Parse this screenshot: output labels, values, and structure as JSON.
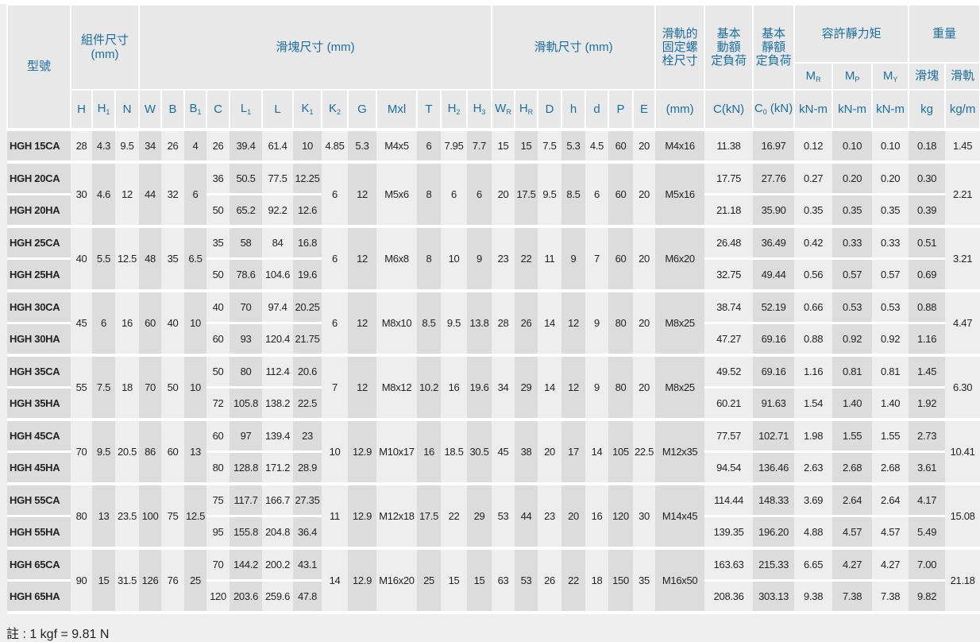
{
  "header": {
    "model": "型號",
    "assembly": "組件尺寸\n(mm)",
    "block": "滑塊尺寸 (mm)",
    "rail": "滑軌尺寸 (mm)",
    "bolt": "滑軌的\n固定螺\n栓尺寸",
    "dynamic": "基本\n動額\n定負荷",
    "static": "基本\n靜額\n定負荷",
    "moment": "容許靜力矩",
    "weight": "重量",
    "symbols": [
      {
        "b": "H",
        "s": ""
      },
      {
        "b": "H",
        "s": "1"
      },
      {
        "b": "N",
        "s": ""
      },
      {
        "b": "W",
        "s": ""
      },
      {
        "b": "B",
        "s": ""
      },
      {
        "b": "B",
        "s": "1"
      },
      {
        "b": "C",
        "s": ""
      },
      {
        "b": "L",
        "s": "1"
      },
      {
        "b": "L",
        "s": ""
      },
      {
        "b": "K",
        "s": "1"
      },
      {
        "b": "K",
        "s": "2"
      },
      {
        "b": "G",
        "s": ""
      },
      {
        "b": "Mxl",
        "s": ""
      },
      {
        "b": "T",
        "s": ""
      },
      {
        "b": "H",
        "s": "2"
      },
      {
        "b": "H",
        "s": "3"
      },
      {
        "b": "W",
        "s": "R"
      },
      {
        "b": "H",
        "s": "R"
      },
      {
        "b": "D",
        "s": ""
      },
      {
        "b": "h",
        "s": ""
      },
      {
        "b": "d",
        "s": ""
      },
      {
        "b": "P",
        "s": ""
      },
      {
        "b": "E",
        "s": ""
      },
      {
        "b": "(mm)",
        "s": ""
      },
      {
        "b": "C(kN)",
        "s": ""
      },
      {
        "b": "C",
        "s": "0",
        "t": " (kN)"
      }
    ],
    "moment_cols": [
      {
        "b": "M",
        "s": "R",
        "unit": "kN-m"
      },
      {
        "b": "M",
        "s": "P",
        "unit": "kN-m"
      },
      {
        "b": "M",
        "s": "Y",
        "unit": "kN-m"
      }
    ],
    "weight_cols": [
      {
        "b": "滑塊",
        "unit": "kg"
      },
      {
        "b": "滑軌",
        "unit": "kg/m"
      }
    ]
  },
  "groups": [
    {
      "shared": {
        "H": "28",
        "H1": "4.3",
        "N": "9.5",
        "W": "34",
        "B": "26",
        "B1": "4",
        "K2": "4.85",
        "G": "5.3",
        "Mxl": "M4x5",
        "T": "6",
        "H2": "7.95",
        "H3": "7.7",
        "WR": "15",
        "HR": "15",
        "D": "7.5",
        "h": "5.3",
        "d": "4.5",
        "P": "60",
        "E": "20",
        "bolt": "M4x16",
        "rail": "1.45"
      },
      "variants": [
        {
          "model": "HGH 15CA",
          "C": "26",
          "L1": "39.4",
          "L": "61.4",
          "K1": "10",
          "Cdyn": "11.38",
          "C0": "16.97",
          "MR": "0.12",
          "MP": "0.10",
          "MY": "0.10",
          "block": "0.18"
        }
      ]
    },
    {
      "shared": {
        "H": "30",
        "H1": "4.6",
        "N": "12",
        "W": "44",
        "B": "32",
        "B1": "6",
        "K2": "6",
        "G": "12",
        "Mxl": "M5x6",
        "T": "8",
        "H2": "6",
        "H3": "6",
        "WR": "20",
        "HR": "17.5",
        "D": "9.5",
        "h": "8.5",
        "d": "6",
        "P": "60",
        "E": "20",
        "bolt": "M5x16",
        "rail": "2.21"
      },
      "variants": [
        {
          "model": "HGH 20CA",
          "C": "36",
          "L1": "50.5",
          "L": "77.5",
          "K1": "12.25",
          "Cdyn": "17.75",
          "C0": "27.76",
          "MR": "0.27",
          "MP": "0.20",
          "MY": "0.20",
          "block": "0.30"
        },
        {
          "model": "HGH 20HA",
          "C": "50",
          "L1": "65.2",
          "L": "92.2",
          "K1": "12.6",
          "Cdyn": "21.18",
          "C0": "35.90",
          "MR": "0.35",
          "MP": "0.35",
          "MY": "0.35",
          "block": "0.39"
        }
      ]
    },
    {
      "shared": {
        "H": "40",
        "H1": "5.5",
        "N": "12.5",
        "W": "48",
        "B": "35",
        "B1": "6.5",
        "K2": "6",
        "G": "12",
        "Mxl": "M6x8",
        "T": "8",
        "H2": "10",
        "H3": "9",
        "WR": "23",
        "HR": "22",
        "D": "11",
        "h": "9",
        "d": "7",
        "P": "60",
        "E": "20",
        "bolt": "M6x20",
        "rail": "3.21"
      },
      "variants": [
        {
          "model": "HGH 25CA",
          "C": "35",
          "L1": "58",
          "L": "84",
          "K1": "16.8",
          "Cdyn": "26.48",
          "C0": "36.49",
          "MR": "0.42",
          "MP": "0.33",
          "MY": "0.33",
          "block": "0.51"
        },
        {
          "model": "HGH 25HA",
          "C": "50",
          "L1": "78.6",
          "L": "104.6",
          "K1": "19.6",
          "Cdyn": "32.75",
          "C0": "49.44",
          "MR": "0.56",
          "MP": "0.57",
          "MY": "0.57",
          "block": "0.69"
        }
      ]
    },
    {
      "shared": {
        "H": "45",
        "H1": "6",
        "N": "16",
        "W": "60",
        "B": "40",
        "B1": "10",
        "K2": "6",
        "G": "12",
        "Mxl": "M8x10",
        "T": "8.5",
        "H2": "9.5",
        "H3": "13.8",
        "WR": "28",
        "HR": "26",
        "D": "14",
        "h": "12",
        "d": "9",
        "P": "80",
        "E": "20",
        "bolt": "M8x25",
        "rail": "4.47"
      },
      "variants": [
        {
          "model": "HGH 30CA",
          "C": "40",
          "L1": "70",
          "L": "97.4",
          "K1": "20.25",
          "Cdyn": "38.74",
          "C0": "52.19",
          "MR": "0.66",
          "MP": "0.53",
          "MY": "0.53",
          "block": "0.88"
        },
        {
          "model": "HGH 30HA",
          "C": "60",
          "L1": "93",
          "L": "120.4",
          "K1": "21.75",
          "Cdyn": "47.27",
          "C0": "69.16",
          "MR": "0.88",
          "MP": "0.92",
          "MY": "0.92",
          "block": "1.16"
        }
      ]
    },
    {
      "shared": {
        "H": "55",
        "H1": "7.5",
        "N": "18",
        "W": "70",
        "B": "50",
        "B1": "10",
        "K2": "7",
        "G": "12",
        "Mxl": "M8x12",
        "T": "10.2",
        "H2": "16",
        "H3": "19.6",
        "WR": "34",
        "HR": "29",
        "D": "14",
        "h": "12",
        "d": "9",
        "P": "80",
        "E": "20",
        "bolt": "M8x25",
        "rail": "6.30"
      },
      "variants": [
        {
          "model": "HGH 35CA",
          "C": "50",
          "L1": "80",
          "L": "112.4",
          "K1": "20.6",
          "Cdyn": "49.52",
          "C0": "69.16",
          "MR": "1.16",
          "MP": "0.81",
          "MY": "0.81",
          "block": "1.45"
        },
        {
          "model": "HGH 35HA",
          "C": "72",
          "L1": "105.8",
          "L": "138.2",
          "K1": "22.5",
          "Cdyn": "60.21",
          "C0": "91.63",
          "MR": "1.54",
          "MP": "1.40",
          "MY": "1.40",
          "block": "1.92"
        }
      ]
    },
    {
      "shared": {
        "H": "70",
        "H1": "9.5",
        "N": "20.5",
        "W": "86",
        "B": "60",
        "B1": "13",
        "K2": "10",
        "G": "12.9",
        "Mxl": "M10x17",
        "T": "16",
        "H2": "18.5",
        "H3": "30.5",
        "WR": "45",
        "HR": "38",
        "D": "20",
        "h": "17",
        "d": "14",
        "P": "105",
        "E": "22.5",
        "bolt": "M12x35",
        "rail": "10.41"
      },
      "variants": [
        {
          "model": "HGH 45CA",
          "C": "60",
          "L1": "97",
          "L": "139.4",
          "K1": "23",
          "Cdyn": "77.57",
          "C0": "102.71",
          "MR": "1.98",
          "MP": "1.55",
          "MY": "1.55",
          "block": "2.73"
        },
        {
          "model": "HGH 45HA",
          "C": "80",
          "L1": "128.8",
          "L": "171.2",
          "K1": "28.9",
          "Cdyn": "94.54",
          "C0": "136.46",
          "MR": "2.63",
          "MP": "2.68",
          "MY": "2.68",
          "block": "3.61"
        }
      ]
    },
    {
      "shared": {
        "H": "80",
        "H1": "13",
        "N": "23.5",
        "W": "100",
        "B": "75",
        "B1": "12.5",
        "K2": "11",
        "G": "12.9",
        "Mxl": "M12x18",
        "T": "17.5",
        "H2": "22",
        "H3": "29",
        "WR": "53",
        "HR": "44",
        "D": "23",
        "h": "20",
        "d": "16",
        "P": "120",
        "E": "30",
        "bolt": "M14x45",
        "rail": "15.08"
      },
      "variants": [
        {
          "model": "HGH 55CA",
          "C": "75",
          "L1": "117.7",
          "L": "166.7",
          "K1": "27.35",
          "Cdyn": "114.44",
          "C0": "148.33",
          "MR": "3.69",
          "MP": "2.64",
          "MY": "2.64",
          "block": "4.17"
        },
        {
          "model": "HGH 55HA",
          "C": "95",
          "L1": "155.8",
          "L": "204.8",
          "K1": "36.4",
          "Cdyn": "139.35",
          "C0": "196.20",
          "MR": "4.88",
          "MP": "4.57",
          "MY": "4.57",
          "block": "5.49"
        }
      ]
    },
    {
      "shared": {
        "H": "90",
        "H1": "15",
        "N": "31.5",
        "W": "126",
        "B": "76",
        "B1": "25",
        "K2": "14",
        "G": "12.9",
        "Mxl": "M16x20",
        "T": "25",
        "H2": "15",
        "H3": "15",
        "WR": "63",
        "HR": "53",
        "D": "26",
        "h": "22",
        "d": "18",
        "P": "150",
        "E": "35",
        "bolt": "M16x50",
        "rail": "21.18"
      },
      "variants": [
        {
          "model": "HGH 65CA",
          "C": "70",
          "L1": "144.2",
          "L": "200.2",
          "K1": "43.1",
          "Cdyn": "163.63",
          "C0": "215.33",
          "MR": "6.65",
          "MP": "4.27",
          "MY": "4.27",
          "block": "7.00"
        },
        {
          "model": "HGH 65HA",
          "C": "120",
          "L1": "203.6",
          "L": "259.6",
          "K1": "47.8",
          "Cdyn": "208.36",
          "C0": "303.13",
          "MR": "9.38",
          "MP": "7.38",
          "MY": "7.38",
          "block": "9.82"
        }
      ]
    }
  ],
  "note": "註 : 1 kgf = 9.81 N",
  "colors": {
    "header_text": "#1b6fa0",
    "header_bg": "#e8e8e8",
    "col_dark": "#dcdcdc",
    "col_light": "#eeeeee",
    "separator": "#ffffff"
  }
}
